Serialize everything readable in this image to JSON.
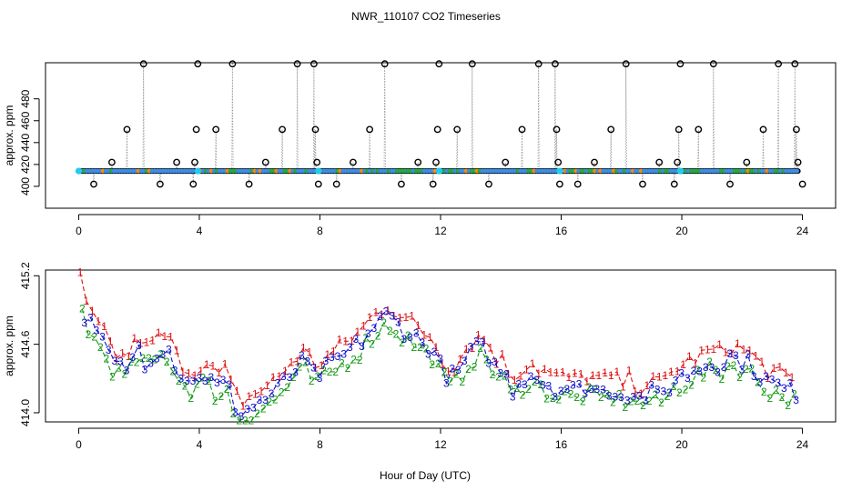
{
  "figure": {
    "title": "NWR_110107  CO2 Timeseries",
    "xlabel": "Hour of Day (UTC)"
  },
  "chart_data": [
    {
      "type": "scatter",
      "title": "",
      "xlabel": "",
      "ylabel": "approx. ppm",
      "xlim": [
        -1.1,
        25.1
      ],
      "ylim": [
        380,
        513
      ],
      "xticks": [
        0,
        4,
        8,
        12,
        16,
        20,
        24
      ],
      "yticks": [
        400,
        420,
        440,
        460,
        480
      ],
      "baseline_value": 414,
      "segments": [
        {
          "start": 0.0,
          "end": 3.85
        },
        {
          "start": 3.95,
          "end": 7.85
        },
        {
          "start": 7.95,
          "end": 11.85
        },
        {
          "start": 11.95,
          "end": 15.85
        },
        {
          "start": 15.95,
          "end": 19.85
        },
        {
          "start": 19.95,
          "end": 23.85
        }
      ],
      "spikes": [
        {
          "x": 0.5,
          "y": 402
        },
        {
          "x": 1.1,
          "y": 422
        },
        {
          "x": 1.6,
          "y": 452
        },
        {
          "x": 2.15,
          "y": 513
        },
        {
          "x": 2.7,
          "y": 402
        },
        {
          "x": 3.25,
          "y": 422
        },
        {
          "x": 3.8,
          "y": 402
        },
        {
          "x": 3.85,
          "y": 422
        },
        {
          "x": 3.9,
          "y": 452
        },
        {
          "x": 3.95,
          "y": 513
        },
        {
          "x": 4.55,
          "y": 452
        },
        {
          "x": 5.1,
          "y": 513
        },
        {
          "x": 5.65,
          "y": 402
        },
        {
          "x": 6.2,
          "y": 422
        },
        {
          "x": 6.75,
          "y": 452
        },
        {
          "x": 7.25,
          "y": 513
        },
        {
          "x": 7.8,
          "y": 513
        },
        {
          "x": 7.85,
          "y": 452
        },
        {
          "x": 7.9,
          "y": 422
        },
        {
          "x": 7.95,
          "y": 402
        },
        {
          "x": 8.55,
          "y": 402
        },
        {
          "x": 9.1,
          "y": 422
        },
        {
          "x": 9.65,
          "y": 452
        },
        {
          "x": 10.15,
          "y": 513
        },
        {
          "x": 10.7,
          "y": 402
        },
        {
          "x": 11.25,
          "y": 422
        },
        {
          "x": 11.75,
          "y": 402
        },
        {
          "x": 11.85,
          "y": 422
        },
        {
          "x": 11.9,
          "y": 452
        },
        {
          "x": 11.95,
          "y": 513
        },
        {
          "x": 12.55,
          "y": 452
        },
        {
          "x": 13.05,
          "y": 513
        },
        {
          "x": 13.6,
          "y": 402
        },
        {
          "x": 14.15,
          "y": 422
        },
        {
          "x": 14.7,
          "y": 452
        },
        {
          "x": 15.25,
          "y": 513
        },
        {
          "x": 15.8,
          "y": 513
        },
        {
          "x": 15.85,
          "y": 452
        },
        {
          "x": 15.9,
          "y": 422
        },
        {
          "x": 15.95,
          "y": 402
        },
        {
          "x": 16.55,
          "y": 402
        },
        {
          "x": 17.1,
          "y": 422
        },
        {
          "x": 17.65,
          "y": 452
        },
        {
          "x": 18.15,
          "y": 513
        },
        {
          "x": 18.7,
          "y": 402
        },
        {
          "x": 19.25,
          "y": 422
        },
        {
          "x": 19.75,
          "y": 402
        },
        {
          "x": 19.85,
          "y": 422
        },
        {
          "x": 19.9,
          "y": 452
        },
        {
          "x": 19.95,
          "y": 513
        },
        {
          "x": 20.55,
          "y": 452
        },
        {
          "x": 21.05,
          "y": 513
        },
        {
          "x": 21.6,
          "y": 402
        },
        {
          "x": 22.15,
          "y": 422
        },
        {
          "x": 22.7,
          "y": 452
        },
        {
          "x": 23.2,
          "y": 513
        },
        {
          "x": 23.75,
          "y": 513
        },
        {
          "x": 23.8,
          "y": 452
        },
        {
          "x": 23.85,
          "y": 422
        },
        {
          "x": 24.0,
          "y": 402
        }
      ]
    },
    {
      "type": "line",
      "title": "",
      "xlabel": "",
      "ylabel": "approx. ppm",
      "xlim": [
        -1.1,
        25.1
      ],
      "ylim": [
        413.92,
        415.25
      ],
      "xticks": [
        0,
        4,
        8,
        12,
        16,
        20,
        24
      ],
      "yticks": [
        414.0,
        414.6,
        415.2
      ],
      "ytick_labels": [
        "414.0",
        "414.6",
        "415.2"
      ],
      "series": [
        {
          "name": "1",
          "label": "1"
        },
        {
          "name": "2",
          "label": "2"
        },
        {
          "name": "3",
          "label": "3"
        }
      ],
      "anchors_x": [
        0.0,
        0.2,
        0.5,
        0.8,
        1.0,
        1.2,
        1.5,
        1.8,
        2.0,
        2.2,
        2.5,
        2.8,
        3.0,
        3.3,
        3.6,
        3.8,
        4.0,
        4.3,
        4.6,
        4.9,
        5.1,
        5.4,
        5.7,
        6.0,
        6.3,
        6.6,
        6.9,
        7.2,
        7.5,
        7.8,
        8.1,
        8.4,
        8.7,
        9.0,
        9.3,
        9.6,
        9.9,
        10.2,
        10.5,
        10.8,
        11.1,
        11.4,
        11.7,
        12.0,
        12.3,
        12.6,
        12.9,
        13.2,
        13.5,
        13.8,
        14.1,
        14.4,
        14.7,
        15.0,
        15.3,
        15.6,
        15.9,
        16.2,
        16.5,
        16.8,
        17.1,
        17.4,
        17.7,
        18.0,
        18.3,
        18.6,
        18.9,
        19.2,
        19.5,
        19.8,
        20.1,
        20.4,
        20.7,
        21.0,
        21.3,
        21.6,
        21.9,
        22.2,
        22.5,
        22.8,
        23.1,
        23.4,
        23.7
      ],
      "anchors_y": [
        415.15,
        414.85,
        414.72,
        414.6,
        414.52,
        414.42,
        414.38,
        414.46,
        414.6,
        414.45,
        414.52,
        414.58,
        414.55,
        414.36,
        414.3,
        414.25,
        414.35,
        414.3,
        414.22,
        414.28,
        414.08,
        414.0,
        414.04,
        414.1,
        414.14,
        414.2,
        414.3,
        414.38,
        414.45,
        414.32,
        414.36,
        414.42,
        414.48,
        414.55,
        414.6,
        414.7,
        414.78,
        414.85,
        414.8,
        414.72,
        414.68,
        414.6,
        414.58,
        414.4,
        414.3,
        414.35,
        414.5,
        414.56,
        414.55,
        414.4,
        414.35,
        414.2,
        414.3,
        414.35,
        414.28,
        414.25,
        414.2,
        414.22,
        414.18,
        414.24,
        414.2,
        414.18,
        414.22,
        414.15,
        414.2,
        414.12,
        414.18,
        414.14,
        414.2,
        414.3,
        414.32,
        414.38,
        414.4,
        414.45,
        414.42,
        414.5,
        414.46,
        414.44,
        414.35,
        414.28,
        414.25,
        414.2,
        414.18
      ]
    }
  ]
}
